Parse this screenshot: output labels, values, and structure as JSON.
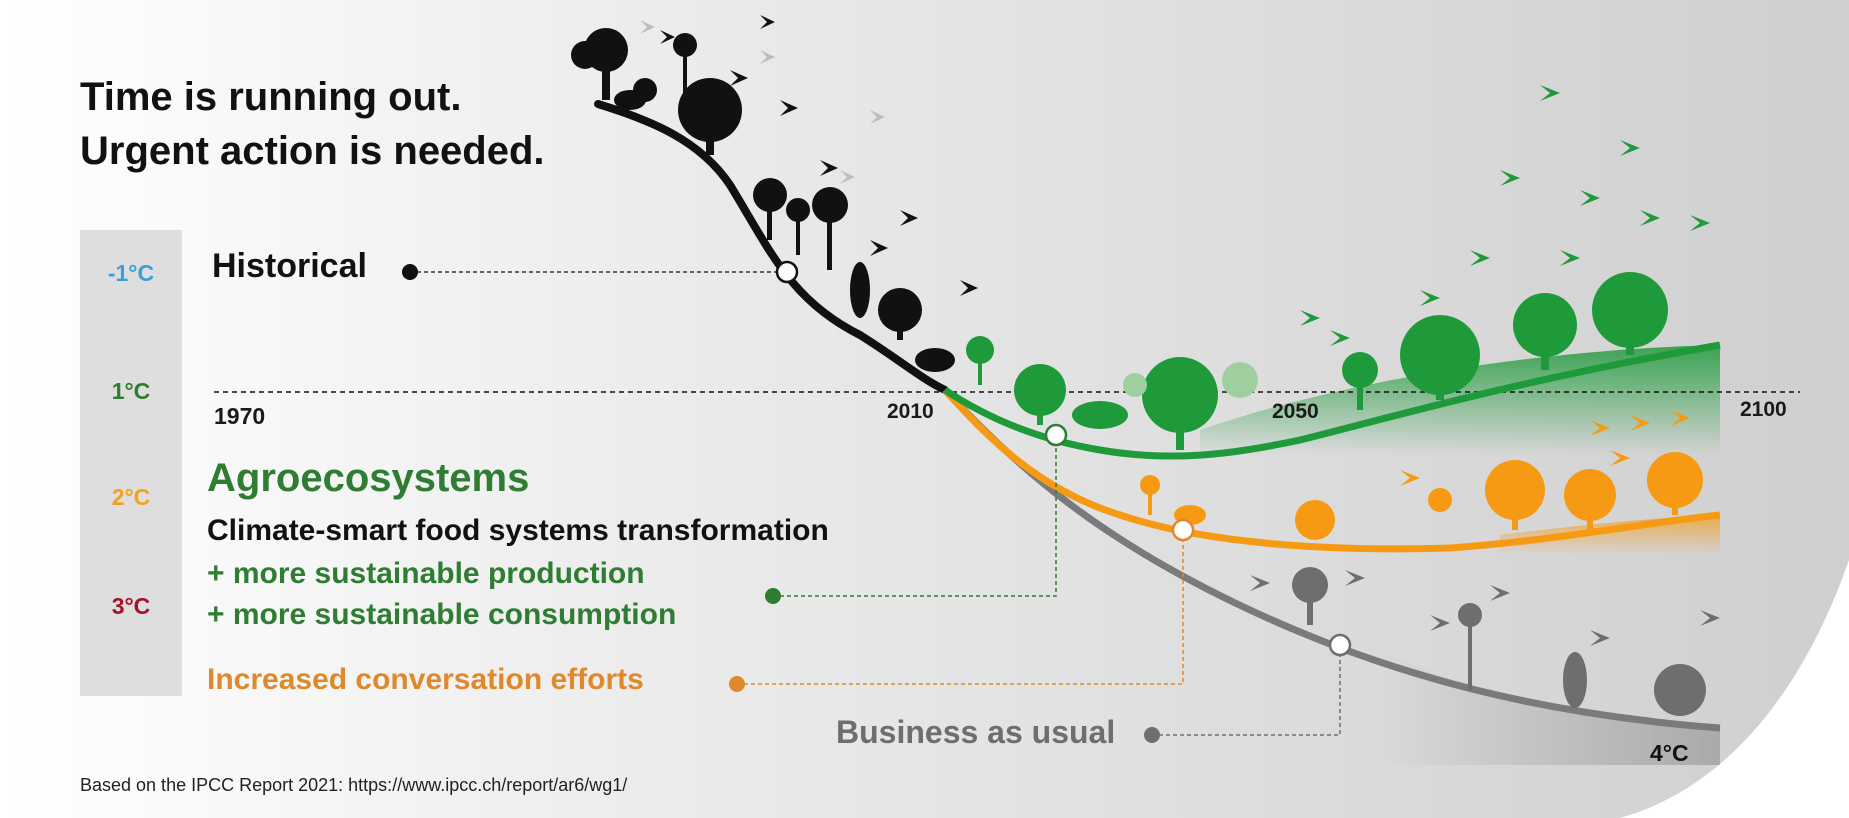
{
  "headline": {
    "line1": "Time is running out.",
    "line2": "Urgent action is needed."
  },
  "temperature_scale": {
    "minus1": {
      "label": "-1°C",
      "color": "#3aa0dc"
    },
    "plus1": {
      "label": "1°C",
      "color": "#2e7d32"
    },
    "plus2": {
      "label": "2°C",
      "color": "#f2a11f"
    },
    "plus3": {
      "label": "3°C",
      "color": "#a3122a"
    }
  },
  "years": {
    "start": "1970",
    "y2010": "2010",
    "y2050": "2050",
    "end": "2100"
  },
  "historical": {
    "label": "Historical",
    "color": "#111111"
  },
  "agro": {
    "title": "Agroecosystems",
    "subtitle": "Climate-smart food systems transformation",
    "line1": "+ more sustainable production",
    "line2": "+ more sustainable consumption",
    "color": "#2e7d32"
  },
  "conservation": {
    "label": "Increased conversation efforts",
    "color": "#e0892a"
  },
  "business": {
    "label": "Business as usual",
    "color": "#6e6e6e"
  },
  "end_temp": "4°C",
  "source": "Based on the IPCC Report 2021: https://www.ipcc.ch/report/ar6/wg1/",
  "colors": {
    "green": "#1f9a3b",
    "orange": "#f59a12",
    "gray": "#7a7a7a",
    "black": "#111111"
  }
}
